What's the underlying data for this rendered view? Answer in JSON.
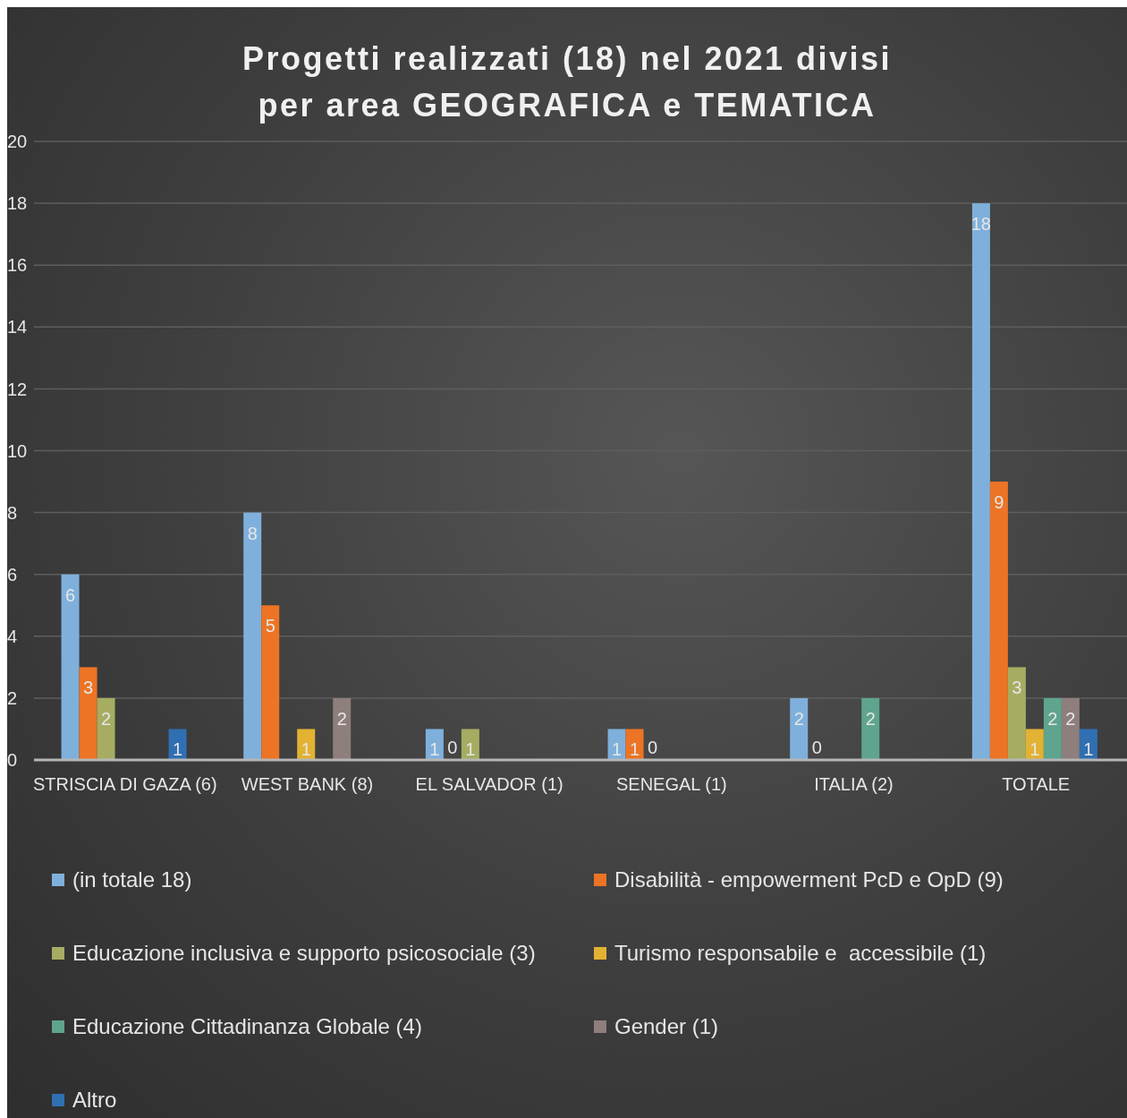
{
  "chart_data": {
    "type": "bar",
    "title": "Progetti realizzati (18) nel 2021 divisi per area GEOGRAFICA e TEMATICA",
    "categories": [
      "STRISCIA DI GAZA (6)",
      "WEST BANK (8)",
      "EL SALVADOR (1)",
      "SENEGAL (1)",
      "ITALIA (2)",
      "TOTALE"
    ],
    "series": [
      {
        "name": "(in totale 18)",
        "color": "#7fb0dc",
        "values": [
          6,
          8,
          1,
          1,
          2,
          18
        ]
      },
      {
        "name": "Disabilità - empowerment PcD e OpD (9)",
        "color": "#ec7424",
        "values": [
          3,
          5,
          0,
          1,
          0,
          9
        ]
      },
      {
        "name": "Educazione inclusiva e supporto psicosociale (3)",
        "color": "#a6ad62",
        "values": [
          2,
          null,
          1,
          0,
          null,
          3
        ]
      },
      {
        "name": "Turismo responsabile e  accessibile (1)",
        "color": "#e2b232",
        "values": [
          null,
          1,
          null,
          null,
          null,
          1
        ]
      },
      {
        "name": "Educazione Cittadinanza Globale (4)",
        "color": "#5fa48e",
        "values": [
          null,
          null,
          null,
          null,
          2,
          2
        ]
      },
      {
        "name": "Gender (1)",
        "color": "#8e7e7c",
        "values": [
          null,
          2,
          null,
          null,
          null,
          2
        ]
      },
      {
        "name": "Altro",
        "color": "#2f6fb2",
        "values": [
          1,
          null,
          null,
          null,
          null,
          1
        ]
      }
    ],
    "ylim": [
      0,
      20
    ],
    "yticks": [
      0,
      2,
      4,
      6,
      8,
      10,
      12,
      14,
      16,
      18,
      20
    ],
    "grid": "y",
    "legend": "bottom",
    "data_labels": true
  }
}
